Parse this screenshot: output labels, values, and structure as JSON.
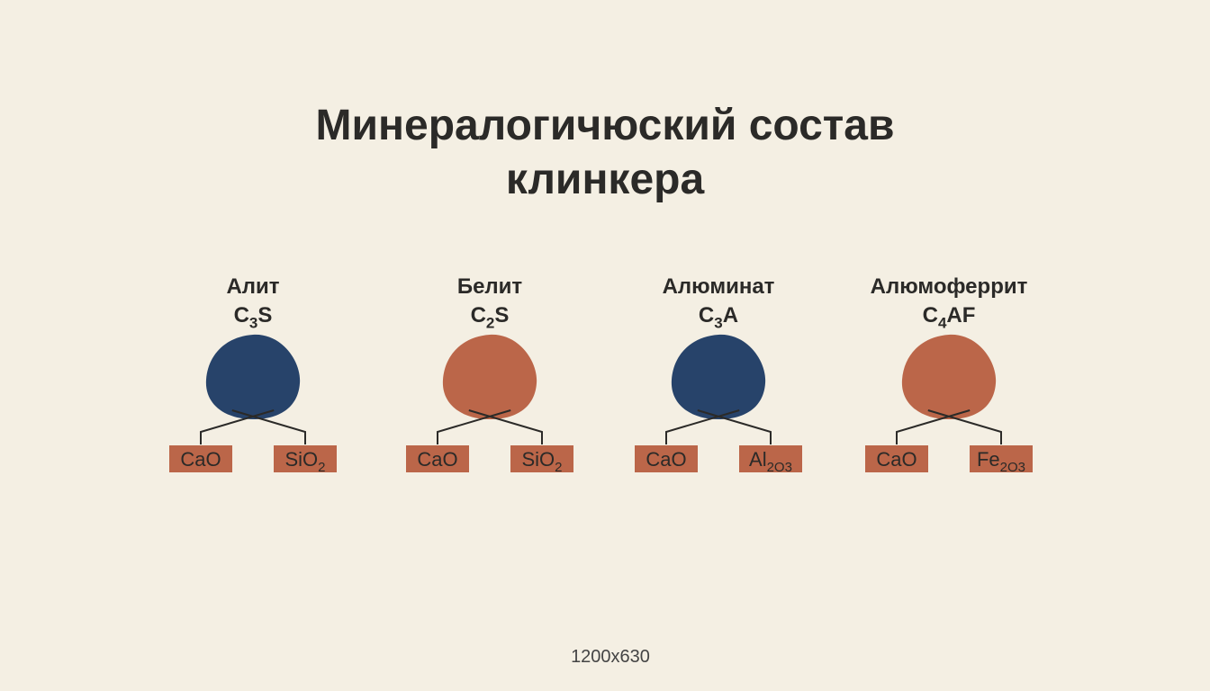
{
  "title": "Минералогичюский состав клинкера",
  "minerals": [
    {
      "name": "Алит",
      "formula": [
        {
          "text": "C"
        },
        {
          "sub": "3"
        },
        {
          "text": "S"
        }
      ],
      "color": "#27436a",
      "components": [
        [
          {
            "text": "CaO"
          }
        ],
        [
          {
            "text": "SiO"
          },
          {
            "sub": "2"
          }
        ]
      ]
    },
    {
      "name": "Белит",
      "formula": [
        {
          "text": "C"
        },
        {
          "sub": "2"
        },
        {
          "text": "S"
        }
      ],
      "color": "#bb6649",
      "components": [
        [
          {
            "text": "CaO"
          }
        ],
        [
          {
            "text": "SiO"
          },
          {
            "sub": "2"
          }
        ]
      ]
    },
    {
      "name": "Алюминат",
      "formula": [
        {
          "text": "C"
        },
        {
          "sub": "3"
        },
        {
          "text": "A"
        }
      ],
      "color": "#27436a",
      "components": [
        [
          {
            "text": "CaO"
          }
        ],
        [
          {
            "text": "Al"
          },
          {
            "sub": "2O3"
          }
        ]
      ]
    },
    {
      "name": "Алюмоферрит",
      "formula": [
        {
          "text": "C"
        },
        {
          "sub": "4"
        },
        {
          "text": "AF"
        }
      ],
      "color": "#bb6649",
      "components": [
        [
          {
            "text": "CaO"
          }
        ],
        [
          {
            "text": "Fe"
          },
          {
            "sub": "2O3"
          }
        ]
      ]
    }
  ],
  "box_color": "#bb6649",
  "footer": "1200x630"
}
